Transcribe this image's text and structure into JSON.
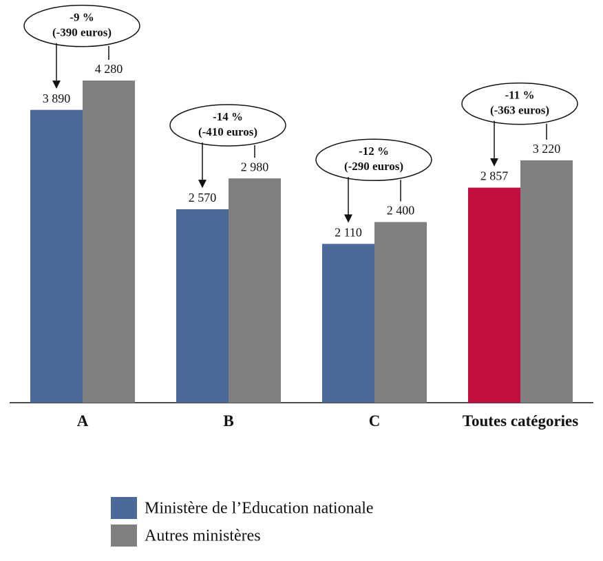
{
  "chart_data": {
    "type": "bar",
    "categories": [
      "A",
      "B",
      "C",
      "Toutes catégories"
    ],
    "series": [
      {
        "name": "Ministère de l’Education nationale",
        "color": "#4a6a9a",
        "colors": [
          "#4a6a9a",
          "#4a6a9a",
          "#4a6a9a",
          "#c20e3f"
        ],
        "values": [
          3890,
          2570,
          2110,
          2857
        ],
        "value_labels": [
          "3 890",
          "2 570",
          "2 110",
          "2 857"
        ]
      },
      {
        "name": "Autres ministères",
        "color": "#808080",
        "values": [
          4280,
          2980,
          2400,
          3220
        ],
        "value_labels": [
          "4 280",
          "2 980",
          "2 400",
          "3 220"
        ]
      }
    ],
    "annotations": [
      [
        "-9 %",
        "(-390 euros)"
      ],
      [
        "-14 %",
        "(-410 euros)"
      ],
      [
        "-12 %",
        "(-290 euros)"
      ],
      [
        "-11 %",
        "(-363 euros)"
      ]
    ]
  }
}
